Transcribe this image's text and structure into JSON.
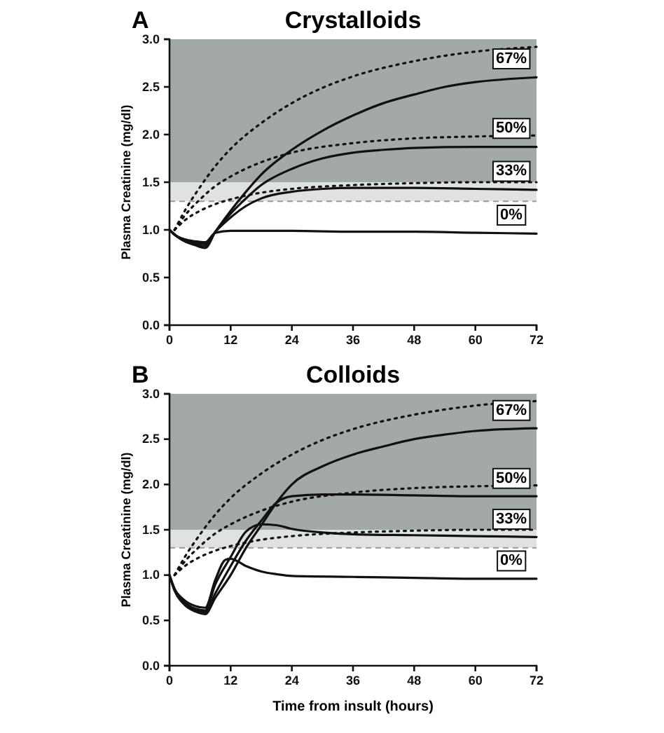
{
  "chart_data": [
    {
      "type": "line",
      "title": "Crystalloids",
      "ylabel": "Plasma Creatinine (mg/dl)",
      "annotations": [
        "A"
      ],
      "xlim": [
        0,
        72
      ],
      "xticks": [
        0,
        12,
        24,
        36,
        48,
        60,
        72
      ],
      "ylim": [
        0,
        3
      ],
      "yticks": [
        {
          "value": 0,
          "label": "0.0"
        },
        {
          "value": 0.5,
          "label": "0.5"
        },
        {
          "value": 1,
          "label": "1.0"
        },
        {
          "value": 1.5,
          "label": "1.5"
        },
        {
          "value": 2,
          "label": "2.0"
        },
        {
          "value": 2.5,
          "label": "2.5"
        },
        {
          "value": 3,
          "label": "3.0"
        }
      ],
      "grid": false,
      "marker": "none",
      "bands": [
        {
          "axis": "y",
          "from": 1.5,
          "to": 3,
          "color": "#a3a9a7"
        },
        {
          "axis": "y",
          "from": 1.3,
          "to": 1.5,
          "color": "#e0e2e1"
        }
      ],
      "ref_lines": [
        {
          "axis": "y",
          "value": 1.3,
          "color": "#9a9a9a",
          "line_style": "dashed"
        }
      ],
      "series": [
        {
          "name": "0%",
          "color": "#111111",
          "line_style": "solid",
          "x": [
            0,
            1,
            3,
            5,
            7,
            9,
            12,
            24,
            36,
            48,
            60,
            72
          ],
          "values": [
            1.0,
            0.95,
            0.9,
            0.88,
            0.87,
            0.97,
            0.99,
            0.99,
            0.98,
            0.98,
            0.97,
            0.96
          ]
        },
        {
          "name": "33%",
          "color": "#111111",
          "line_style": "solid",
          "x": [
            0,
            1,
            3,
            5,
            7,
            9,
            12,
            15,
            18,
            24,
            30,
            36,
            48,
            60,
            72
          ],
          "values": [
            1.0,
            0.95,
            0.89,
            0.87,
            0.85,
            0.98,
            1.13,
            1.25,
            1.33,
            1.4,
            1.43,
            1.44,
            1.44,
            1.43,
            1.42
          ]
        },
        {
          "name": "50%",
          "color": "#111111",
          "line_style": "solid",
          "x": [
            0,
            1,
            3,
            5,
            7,
            9,
            12,
            15,
            18,
            24,
            30,
            36,
            42,
            48,
            60,
            72
          ],
          "values": [
            1.0,
            0.95,
            0.88,
            0.85,
            0.83,
            0.98,
            1.17,
            1.33,
            1.47,
            1.64,
            1.75,
            1.81,
            1.84,
            1.86,
            1.87,
            1.87
          ]
        },
        {
          "name": "67%",
          "color": "#111111",
          "line_style": "solid",
          "x": [
            0,
            1,
            3,
            5,
            7,
            9,
            12,
            15,
            18,
            24,
            30,
            36,
            42,
            48,
            54,
            60,
            72
          ],
          "values": [
            1.0,
            0.95,
            0.88,
            0.84,
            0.81,
            0.98,
            1.2,
            1.4,
            1.58,
            1.84,
            2.04,
            2.2,
            2.33,
            2.42,
            2.5,
            2.55,
            2.6
          ]
        },
        {
          "color": "#111111",
          "line_style": "dotted",
          "x": [
            1,
            3,
            6,
            9,
            12,
            18,
            24,
            36,
            48,
            60,
            72
          ],
          "values": [
            1.0,
            1.1,
            1.2,
            1.27,
            1.32,
            1.39,
            1.43,
            1.47,
            1.49,
            1.5,
            1.5
          ]
        },
        {
          "color": "#111111",
          "line_style": "dotted",
          "x": [
            1,
            3,
            6,
            9,
            12,
            18,
            24,
            36,
            48,
            60,
            72
          ],
          "values": [
            1.0,
            1.15,
            1.32,
            1.46,
            1.56,
            1.71,
            1.81,
            1.91,
            1.96,
            1.98,
            1.99
          ]
        },
        {
          "color": "#111111",
          "line_style": "dotted",
          "x": [
            1,
            3,
            6,
            9,
            12,
            18,
            24,
            30,
            36,
            48,
            60,
            72
          ],
          "values": [
            1.0,
            1.2,
            1.45,
            1.67,
            1.85,
            2.12,
            2.33,
            2.49,
            2.61,
            2.77,
            2.87,
            2.92
          ]
        }
      ]
    },
    {
      "type": "line",
      "title": "Colloids",
      "xlabel": "Time from insult (hours)",
      "ylabel": "Plasma Creatinine (mg/dl)",
      "annotations": [
        "B"
      ],
      "xlim": [
        0,
        72
      ],
      "xticks": [
        0,
        12,
        24,
        36,
        48,
        60,
        72
      ],
      "ylim": [
        0,
        3
      ],
      "yticks": [
        {
          "value": 0,
          "label": "0.0"
        },
        {
          "value": 0.5,
          "label": "0.5"
        },
        {
          "value": 1,
          "label": "1.0"
        },
        {
          "value": 1.5,
          "label": "1.5"
        },
        {
          "value": 2,
          "label": "2.0"
        },
        {
          "value": 2.5,
          "label": "2.5"
        },
        {
          "value": 3,
          "label": "3.0"
        }
      ],
      "grid": false,
      "marker": "none",
      "bands": [
        {
          "axis": "y",
          "from": 1.5,
          "to": 3,
          "color": "#a3a9a7"
        },
        {
          "axis": "y",
          "from": 1.3,
          "to": 1.5,
          "color": "#e0e2e1"
        }
      ],
      "ref_lines": [
        {
          "axis": "y",
          "value": 1.3,
          "color": "#9a9a9a",
          "line_style": "dashed"
        }
      ],
      "series": [
        {
          "name": "0%",
          "color": "#111111",
          "line_style": "solid",
          "x": [
            0,
            1,
            3,
            5,
            7,
            9,
            11,
            12,
            15,
            18,
            21,
            24,
            36,
            48,
            60,
            72
          ],
          "values": [
            1.0,
            0.85,
            0.72,
            0.66,
            0.64,
            0.95,
            1.17,
            1.18,
            1.1,
            1.04,
            1.01,
            0.99,
            0.98,
            0.97,
            0.96,
            0.96
          ]
        },
        {
          "name": "33%",
          "color": "#111111",
          "line_style": "solid",
          "x": [
            0,
            1,
            3,
            5,
            7,
            9,
            12,
            15,
            18,
            21,
            24,
            30,
            36,
            48,
            60,
            72
          ],
          "values": [
            1.0,
            0.84,
            0.7,
            0.63,
            0.61,
            0.9,
            1.2,
            1.48,
            1.56,
            1.55,
            1.51,
            1.47,
            1.45,
            1.44,
            1.43,
            1.42
          ]
        },
        {
          "name": "50%",
          "color": "#111111",
          "line_style": "solid",
          "x": [
            0,
            1,
            3,
            5,
            7,
            9,
            12,
            15,
            18,
            21,
            24,
            30,
            36,
            48,
            60,
            72
          ],
          "values": [
            1.0,
            0.83,
            0.68,
            0.62,
            0.59,
            0.8,
            1.1,
            1.38,
            1.6,
            1.8,
            1.87,
            1.89,
            1.89,
            1.88,
            1.87,
            1.87
          ]
        },
        {
          "name": "67%",
          "color": "#111111",
          "line_style": "solid",
          "x": [
            0,
            1,
            3,
            5,
            7,
            9,
            12,
            15,
            18,
            21,
            24,
            30,
            36,
            42,
            48,
            54,
            60,
            72
          ],
          "values": [
            1.0,
            0.83,
            0.67,
            0.6,
            0.57,
            0.75,
            1.0,
            1.3,
            1.55,
            1.8,
            2.0,
            2.2,
            2.33,
            2.42,
            2.5,
            2.55,
            2.59,
            2.62
          ]
        },
        {
          "color": "#111111",
          "line_style": "dotted",
          "x": [
            1,
            3,
            6,
            9,
            12,
            18,
            24,
            36,
            48,
            60,
            72
          ],
          "values": [
            1.0,
            1.1,
            1.2,
            1.27,
            1.32,
            1.39,
            1.43,
            1.47,
            1.49,
            1.5,
            1.5
          ]
        },
        {
          "color": "#111111",
          "line_style": "dotted",
          "x": [
            1,
            3,
            6,
            9,
            12,
            18,
            24,
            36,
            48,
            60,
            72
          ],
          "values": [
            1.0,
            1.15,
            1.32,
            1.46,
            1.56,
            1.71,
            1.81,
            1.91,
            1.96,
            1.98,
            1.99
          ]
        },
        {
          "color": "#111111",
          "line_style": "dotted",
          "x": [
            1,
            3,
            6,
            9,
            12,
            18,
            24,
            30,
            36,
            48,
            60,
            72
          ],
          "values": [
            1.0,
            1.2,
            1.45,
            1.67,
            1.85,
            2.12,
            2.33,
            2.49,
            2.61,
            2.77,
            2.87,
            2.92
          ]
        }
      ]
    }
  ]
}
